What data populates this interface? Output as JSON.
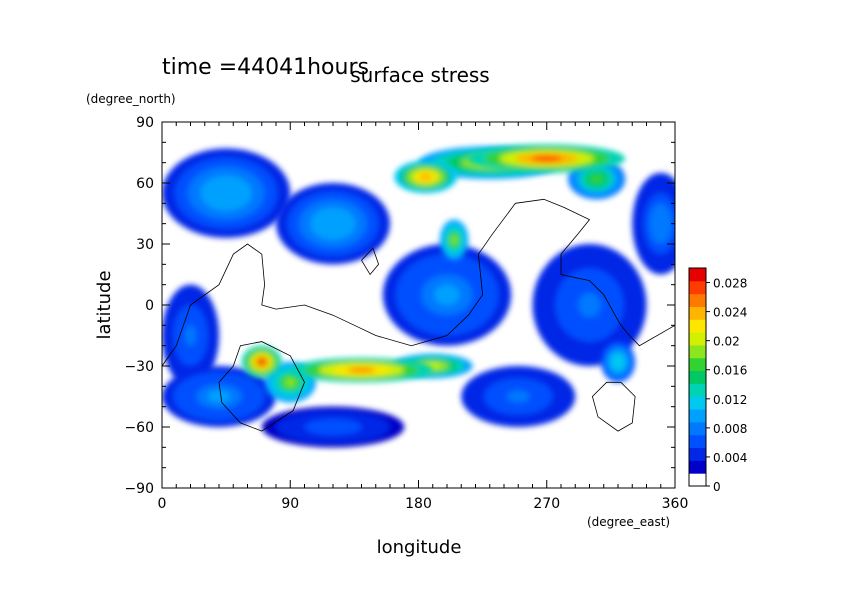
{
  "chart_data": {
    "type": "heatmap",
    "title": "surface stress",
    "subtitle": "time =44041hours",
    "xlabel": "longitude",
    "ylabel": "latitude",
    "x_units": "(degree_east)",
    "y_units": "(degree_north)",
    "xlim": [
      0,
      360
    ],
    "ylim": [
      -90,
      90
    ],
    "x_ticks": [
      0,
      90,
      180,
      270,
      360
    ],
    "y_ticks": [
      -90,
      -60,
      -30,
      0,
      30,
      60,
      90
    ],
    "colorbar": {
      "min": 0,
      "max": 0.03,
      "ticks": [
        "0",
        "0.004",
        "0.008",
        "0.012",
        "0.016",
        "0.02",
        "0.024",
        "0.028"
      ],
      "colors": [
        "#ffffff",
        "#0000c8",
        "#0028e6",
        "#0050ff",
        "#0078ff",
        "#00a0ff",
        "#00c8f0",
        "#00d2b4",
        "#00c864",
        "#32d232",
        "#8ce61e",
        "#d2f000",
        "#ffe600",
        "#ffb400",
        "#ff7800",
        "#ff3c00",
        "#e60000"
      ]
    },
    "field_peaks": [
      {
        "lon": 270,
        "lat": 72,
        "value": 0.029,
        "rx": 55,
        "ry": 7
      },
      {
        "lon": 230,
        "lat": 70,
        "value": 0.022,
        "rx": 50,
        "ry": 8
      },
      {
        "lon": 185,
        "lat": 63,
        "value": 0.026,
        "rx": 22,
        "ry": 8
      },
      {
        "lon": 305,
        "lat": 62,
        "value": 0.018,
        "rx": 20,
        "ry": 10
      },
      {
        "lon": 140,
        "lat": -32,
        "value": 0.028,
        "rx": 50,
        "ry": 6
      },
      {
        "lon": 190,
        "lat": -30,
        "value": 0.022,
        "rx": 28,
        "ry": 6
      },
      {
        "lon": 70,
        "lat": -28,
        "value": 0.03,
        "rx": 14,
        "ry": 8
      },
      {
        "lon": 90,
        "lat": -38,
        "value": 0.02,
        "rx": 18,
        "ry": 10
      },
      {
        "lon": 205,
        "lat": 32,
        "value": 0.02,
        "rx": 10,
        "ry": 10
      },
      {
        "lon": 45,
        "lat": 55,
        "value": 0.011,
        "rx": 45,
        "ry": 22
      },
      {
        "lon": 120,
        "lat": 40,
        "value": 0.011,
        "rx": 40,
        "ry": 20
      },
      {
        "lon": 200,
        "lat": 5,
        "value": 0.01,
        "rx": 45,
        "ry": 25
      },
      {
        "lon": 300,
        "lat": 0,
        "value": 0.008,
        "rx": 40,
        "ry": 30
      },
      {
        "lon": 320,
        "lat": -28,
        "value": 0.013,
        "rx": 12,
        "ry": 10
      },
      {
        "lon": 40,
        "lat": -45,
        "value": 0.01,
        "rx": 40,
        "ry": 15
      },
      {
        "lon": 120,
        "lat": -60,
        "value": 0.007,
        "rx": 50,
        "ry": 10
      },
      {
        "lon": 20,
        "lat": -15,
        "value": 0.008,
        "rx": 20,
        "ry": 25
      },
      {
        "lon": 350,
        "lat": 40,
        "value": 0.009,
        "rx": 20,
        "ry": 25
      },
      {
        "lon": 250,
        "lat": -45,
        "value": 0.008,
        "rx": 40,
        "ry": 15
      }
    ],
    "coastlines": [
      [
        [
          0,
          -30
        ],
        [
          10,
          -20
        ],
        [
          20,
          0
        ],
        [
          40,
          10
        ],
        [
          50,
          25
        ],
        [
          60,
          30
        ],
        [
          70,
          25
        ],
        [
          72,
          10
        ],
        [
          70,
          0
        ],
        [
          80,
          -2
        ],
        [
          100,
          0
        ],
        [
          120,
          -5
        ],
        [
          135,
          -10
        ],
        [
          150,
          -15
        ],
        [
          175,
          -20
        ],
        [
          200,
          -15
        ],
        [
          215,
          -5
        ],
        [
          225,
          5
        ],
        [
          222,
          25
        ],
        [
          232,
          35
        ],
        [
          248,
          50
        ],
        [
          268,
          52
        ],
        [
          282,
          48
        ],
        [
          300,
          42
        ],
        [
          292,
          35
        ],
        [
          280,
          25
        ],
        [
          280,
          15
        ],
        [
          300,
          12
        ],
        [
          310,
          5
        ],
        [
          318,
          -5
        ],
        [
          322,
          -10
        ],
        [
          328,
          -15
        ],
        [
          335,
          -20
        ],
        [
          360,
          -10
        ]
      ],
      [
        [
          50,
          -30
        ],
        [
          55,
          -20
        ],
        [
          70,
          -18
        ],
        [
          90,
          -25
        ],
        [
          100,
          -38
        ],
        [
          92,
          -52
        ],
        [
          70,
          -62
        ],
        [
          55,
          -58
        ],
        [
          42,
          -48
        ],
        [
          40,
          -38
        ],
        [
          50,
          -30
        ]
      ],
      [
        [
          140,
          22
        ],
        [
          148,
          28
        ],
        [
          152,
          20
        ],
        [
          146,
          15
        ],
        [
          140,
          22
        ]
      ],
      [
        [
          322,
          -38
        ],
        [
          332,
          -45
        ],
        [
          330,
          -58
        ],
        [
          320,
          -62
        ],
        [
          306,
          -55
        ],
        [
          302,
          -45
        ],
        [
          312,
          -38
        ],
        [
          322,
          -38
        ]
      ]
    ]
  }
}
